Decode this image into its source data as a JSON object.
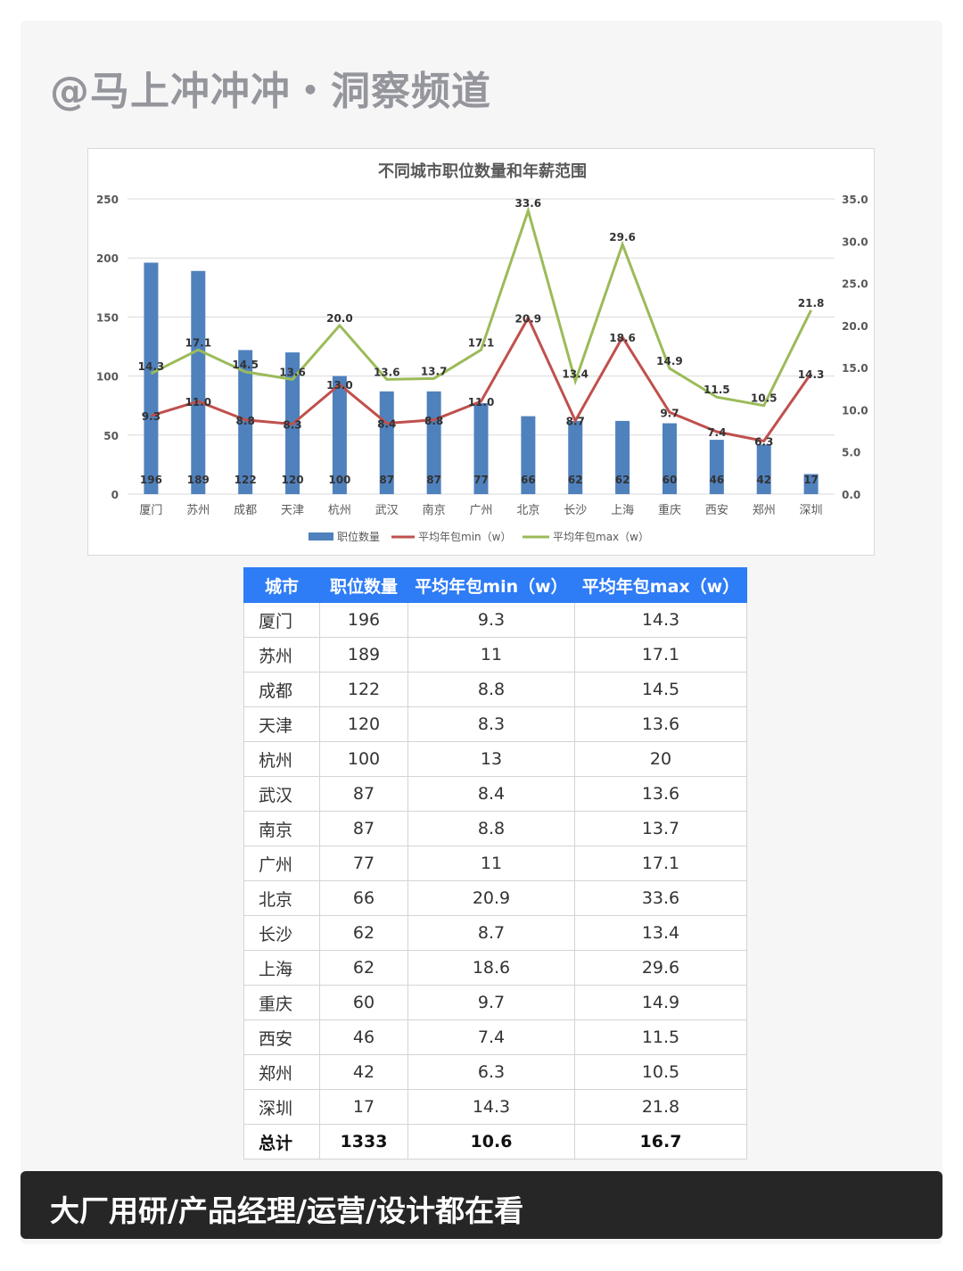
{
  "header": {
    "brand": "@马上冲冲冲・洞察频道"
  },
  "footer": {
    "banner_text": "大厂用研/产品经理/运营/设计都在看"
  },
  "colors": {
    "bar": "#4f81bd",
    "min_line": "#c0504d",
    "max_line": "#9bbb59",
    "table_header": "#2e7cf6",
    "banner_bg": "#262626"
  },
  "chart_data": {
    "type": "bar+line",
    "title": "不同城市职位数量和年薪范围",
    "categories": [
      "厦门",
      "苏州",
      "成都",
      "天津",
      "杭州",
      "武汉",
      "南京",
      "广州",
      "北京",
      "长沙",
      "上海",
      "重庆",
      "西安",
      "郑州",
      "深圳"
    ],
    "series": [
      {
        "name": "职位数量",
        "type": "bar",
        "axis": "left",
        "values": [
          196,
          189,
          122,
          120,
          100,
          87,
          87,
          77,
          66,
          62,
          62,
          60,
          46,
          42,
          17
        ]
      },
      {
        "name": "平均年包min（w）",
        "type": "line",
        "axis": "right",
        "values": [
          9.3,
          11.0,
          8.8,
          8.3,
          13.0,
          8.4,
          8.8,
          11.0,
          20.9,
          8.7,
          18.6,
          9.7,
          7.4,
          6.3,
          14.3
        ]
      },
      {
        "name": "平均年包max（w）",
        "type": "line",
        "axis": "right",
        "values": [
          14.3,
          17.1,
          14.5,
          13.6,
          20.0,
          13.6,
          13.7,
          17.1,
          33.6,
          13.4,
          29.6,
          14.9,
          11.5,
          10.5,
          21.8
        ]
      }
    ],
    "left_axis": {
      "ticks": [
        "0",
        "50",
        "100",
        "150",
        "200",
        "250"
      ],
      "ylim": [
        0,
        250
      ]
    },
    "right_axis": {
      "ticks": [
        "0.0",
        "5.0",
        "10.0",
        "15.0",
        "20.0",
        "25.0",
        "30.0",
        "35.0"
      ],
      "ylim": [
        0,
        35
      ]
    },
    "legend": [
      "职位数量",
      "平均年包min（w）",
      "平均年包max（w）"
    ],
    "legend_position": "bottom",
    "grid": true,
    "xlabel": "",
    "ylabel": ""
  },
  "table": {
    "headers": [
      "城市",
      "职位数量",
      "平均年包min（w）",
      "平均年包max（w）"
    ],
    "rows": [
      [
        "厦门",
        "196",
        "9.3",
        "14.3"
      ],
      [
        "苏州",
        "189",
        "11",
        "17.1"
      ],
      [
        "成都",
        "122",
        "8.8",
        "14.5"
      ],
      [
        "天津",
        "120",
        "8.3",
        "13.6"
      ],
      [
        "杭州",
        "100",
        "13",
        "20"
      ],
      [
        "武汉",
        "87",
        "8.4",
        "13.6"
      ],
      [
        "南京",
        "87",
        "8.8",
        "13.7"
      ],
      [
        "广州",
        "77",
        "11",
        "17.1"
      ],
      [
        "北京",
        "66",
        "20.9",
        "33.6"
      ],
      [
        "长沙",
        "62",
        "8.7",
        "13.4"
      ],
      [
        "上海",
        "62",
        "18.6",
        "29.6"
      ],
      [
        "重庆",
        "60",
        "9.7",
        "14.9"
      ],
      [
        "西安",
        "46",
        "7.4",
        "11.5"
      ],
      [
        "郑州",
        "42",
        "6.3",
        "10.5"
      ],
      [
        "深圳",
        "17",
        "14.3",
        "21.8"
      ]
    ],
    "total": [
      "总计",
      "1333",
      "10.6",
      "16.7"
    ]
  }
}
